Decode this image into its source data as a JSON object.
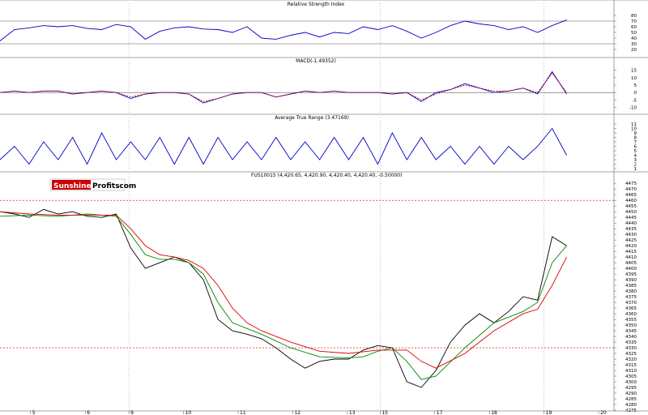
{
  "chart_data": [
    {
      "type": "line",
      "title": "Relative Strength Index",
      "ylim": [
        10,
        90
      ],
      "yticks": [
        20,
        30,
        40,
        50,
        60,
        70,
        80
      ],
      "reference_lines": [
        30,
        70
      ],
      "series": [
        {
          "color": "#0000cc",
          "x": [
            0.0,
            0.5,
            1.0,
            1.5,
            2.0,
            2.5,
            3.0,
            3.5,
            4.0,
            4.5,
            5.0,
            5.5,
            6.0,
            6.5,
            7.0,
            7.5,
            8.0,
            8.5,
            9.0,
            9.5,
            10.0,
            10.5,
            11.0,
            11.5,
            12.0,
            12.5,
            13.0,
            13.5,
            14.0,
            14.5,
            15.0,
            15.5,
            16.0,
            16.5,
            17.0,
            17.5,
            18.0,
            18.5,
            19.0,
            19.5
          ],
          "values": [
            35,
            55,
            58,
            62,
            60,
            62,
            57,
            55,
            64,
            60,
            38,
            52,
            58,
            60,
            56,
            55,
            50,
            60,
            40,
            38,
            45,
            50,
            42,
            50,
            48,
            60,
            55,
            62,
            52,
            40,
            50,
            62,
            70,
            65,
            62,
            55,
            60,
            50,
            62,
            72
          ]
        }
      ]
    },
    {
      "type": "line",
      "title": "MACD(-1.49352)",
      "ylim": [
        -13,
        17
      ],
      "yticks": [
        -10,
        -5,
        0,
        5,
        10,
        15
      ],
      "reference_lines": [
        0
      ],
      "series": [
        {
          "color": "#0000cc",
          "x": [
            0.0,
            0.5,
            1.0,
            1.5,
            2.0,
            2.5,
            3.0,
            3.5,
            4.0,
            4.5,
            5.0,
            5.5,
            6.0,
            6.5,
            7.0,
            7.5,
            8.0,
            8.5,
            9.0,
            9.5,
            10.0,
            10.5,
            11.0,
            11.5,
            12.0,
            12.5,
            13.0,
            13.5,
            14.0,
            14.5,
            15.0,
            15.5,
            16.0,
            16.5,
            17.0,
            17.5,
            18.0,
            18.5,
            19.0,
            19.5
          ],
          "values": [
            0,
            1,
            0,
            1,
            1,
            -1,
            0,
            1,
            0,
            -4,
            -1,
            0,
            0,
            -1,
            -7,
            -4,
            -1,
            0,
            0,
            -3,
            -1,
            1,
            0,
            1,
            0,
            0,
            0,
            -1,
            0,
            -6,
            0,
            2,
            6,
            3,
            0,
            1,
            3,
            -1,
            14,
            -1
          ]
        },
        {
          "color": "#cc0000",
          "x": [
            0.0,
            0.5,
            1.0,
            1.5,
            2.0,
            2.5,
            3.0,
            3.5,
            4.0,
            4.5,
            5.0,
            5.5,
            6.0,
            6.5,
            7.0,
            7.5,
            8.0,
            8.5,
            9.0,
            9.5,
            10.0,
            10.5,
            11.0,
            11.5,
            12.0,
            12.5,
            13.0,
            13.5,
            14.0,
            14.5,
            15.0,
            15.5,
            16.0,
            16.5,
            17.0,
            17.5,
            18.0,
            18.5,
            19.0,
            19.5
          ],
          "values": [
            0,
            1,
            0,
            1,
            1,
            -1,
            0,
            1,
            0,
            -3,
            -1,
            0,
            0,
            -1,
            -6,
            -4,
            -1,
            0,
            0,
            -3,
            -1,
            1,
            0,
            1,
            0,
            0,
            0,
            -1,
            0,
            -5,
            -1,
            2,
            5,
            3,
            1,
            1,
            3,
            0,
            13,
            0
          ]
        }
      ]
    },
    {
      "type": "line",
      "title": "Average True Range (3.47169)",
      "ylim": [
        1,
        11
      ],
      "yticks": [
        1,
        2,
        3,
        4,
        5,
        6,
        7,
        8,
        9,
        10,
        11
      ],
      "series": [
        {
          "color": "#0000cc",
          "x": [
            0.0,
            0.5,
            1.0,
            1.5,
            2.0,
            2.5,
            3.0,
            3.5,
            4.0,
            4.5,
            5.0,
            5.5,
            6.0,
            6.5,
            7.0,
            7.5,
            8.0,
            8.5,
            9.0,
            9.5,
            10.0,
            10.5,
            11.0,
            11.5,
            12.0,
            12.5,
            13.0,
            13.5,
            14.0,
            14.5,
            15.0,
            15.5,
            16.0,
            16.5,
            17.0,
            17.5,
            18.0,
            18.5,
            19.0,
            19.5
          ],
          "values": [
            3,
            6,
            2,
            7,
            3,
            8,
            2,
            9,
            3,
            7,
            3,
            8,
            2,
            8,
            2,
            8,
            3,
            7,
            3,
            8,
            3,
            7,
            3,
            8,
            3,
            8,
            2,
            9,
            3,
            8,
            3,
            6,
            2,
            6,
            2,
            6,
            3,
            6,
            10,
            4
          ]
        }
      ]
    },
    {
      "type": "line",
      "title": "FUS10015 (4,420.65, 4,420.90, 4,420.40, 4,420.40, -0.50000)",
      "ylim": [
        4275,
        4478
      ],
      "ytick_step": 5,
      "reference_lines": [
        4460,
        4330
      ],
      "series": [
        {
          "color": "#000000",
          "x": [
            0.0,
            0.5,
            1.0,
            1.5,
            2.0,
            2.5,
            3.0,
            3.5,
            4.0,
            4.5,
            5.0,
            5.5,
            6.0,
            6.5,
            7.0,
            7.5,
            8.0,
            8.5,
            9.0,
            9.5,
            10.0,
            10.5,
            11.0,
            11.5,
            12.0,
            12.5,
            13.0,
            13.5,
            14.0,
            14.5,
            15.0,
            15.5,
            16.0,
            16.5,
            17.0,
            17.5,
            18.0,
            18.5,
            19.0,
            19.5
          ],
          "values": [
            4450,
            4448,
            4445,
            4452,
            4448,
            4450,
            4446,
            4445,
            4448,
            4418,
            4400,
            4405,
            4410,
            4405,
            4390,
            4355,
            4345,
            4342,
            4338,
            4330,
            4320,
            4312,
            4318,
            4320,
            4320,
            4328,
            4332,
            4330,
            4300,
            4295,
            4310,
            4335,
            4350,
            4360,
            4352,
            4362,
            4375,
            4372,
            4428,
            4420
          ]
        },
        {
          "color": "#008800",
          "x": [
            0.0,
            1.0,
            2.0,
            3.0,
            4.0,
            4.5,
            5.0,
            5.5,
            6.0,
            6.5,
            7.0,
            7.5,
            8.0,
            8.5,
            9.0,
            10.0,
            11.0,
            12.0,
            12.5,
            13.0,
            13.5,
            14.0,
            14.5,
            15.0,
            16.0,
            17.0,
            18.0,
            18.5,
            19.0,
            19.5
          ],
          "values": [
            4446,
            4447,
            4446,
            4448,
            4446,
            4430,
            4412,
            4408,
            4408,
            4405,
            4395,
            4370,
            4352,
            4347,
            4342,
            4330,
            4322,
            4321,
            4322,
            4327,
            4330,
            4318,
            4302,
            4305,
            4330,
            4352,
            4362,
            4370,
            4405,
            4420
          ]
        },
        {
          "color": "#dd0000",
          "x": [
            0.0,
            1.0,
            2.0,
            3.0,
            4.0,
            4.5,
            5.0,
            5.5,
            6.0,
            6.5,
            7.0,
            7.5,
            8.0,
            8.5,
            9.0,
            10.0,
            11.0,
            12.0,
            13.0,
            14.0,
            14.5,
            15.0,
            16.0,
            17.0,
            18.0,
            18.5,
            19.0,
            19.5
          ],
          "values": [
            4450,
            4448,
            4447,
            4447,
            4447,
            4435,
            4420,
            4412,
            4410,
            4407,
            4400,
            4385,
            4365,
            4352,
            4345,
            4335,
            4327,
            4325,
            4328,
            4328,
            4318,
            4312,
            4325,
            4345,
            4360,
            4364,
            4385,
            4410
          ]
        }
      ]
    }
  ],
  "price_pane": {
    "logo": {
      "part1": "Sunshine",
      "part2": "Profits",
      "part3": ".com"
    }
  },
  "x_axis": {
    "labels": [
      "5",
      "6",
      "9",
      "10",
      "11",
      "12",
      "13",
      "15",
      "17",
      "18",
      "19",
      "20"
    ],
    "label_positions": [
      0.5,
      3.0,
      5.0,
      7.5,
      10.0,
      12.5,
      15.0,
      16.5,
      19.0,
      21.5,
      24.0,
      26.5
    ],
    "range": [
      -0.9,
      27.2
    ],
    "dotted_gridlines": [
      5.0,
      16.5,
      24.0
    ]
  }
}
